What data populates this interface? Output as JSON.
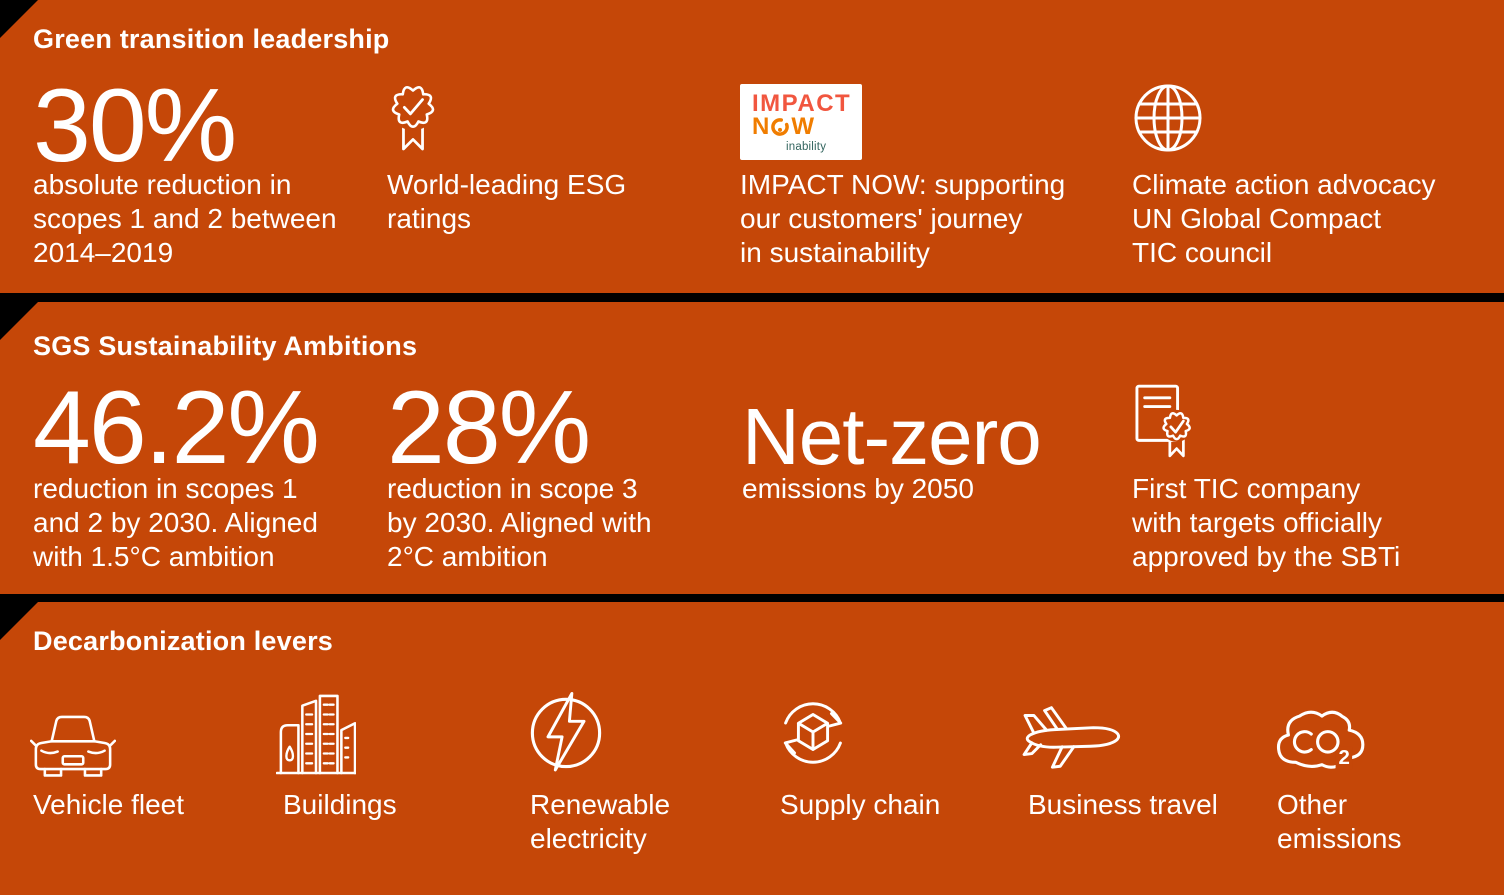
{
  "colors": {
    "background": "#000000",
    "panel": "#C54708",
    "text": "#FFFFFF",
    "logo": {
      "impact": "#F1563F",
      "now": "#F07D00",
      "sub": "#33655F",
      "box_bg": "#FFFFFF"
    }
  },
  "s1": {
    "title": "Green transition leadership",
    "stat": {
      "value": "30%",
      "lines": [
        "absolute reduction in",
        "scopes 1 and 2 between",
        "2014–2019"
      ]
    },
    "esg": {
      "icon": "award-badge-icon",
      "lines": [
        "World-leading ESG",
        "ratings"
      ]
    },
    "impact": {
      "icon": "impact-now-logo",
      "logo": {
        "word1": "IMPACT",
        "n": "N",
        "w": "W",
        "sub": "inability"
      },
      "lines": [
        "IMPACT NOW: supporting",
        "our customers' journey",
        "in sustainability"
      ]
    },
    "climate": {
      "icon": "globe-icon",
      "lines": [
        "Climate action advocacy",
        "UN Global Compact",
        "TIC council"
      ]
    }
  },
  "s2": {
    "title": "SGS Sustainability Ambitions",
    "stat1": {
      "value": "46.2%",
      "lines": [
        "reduction in scopes 1",
        "and 2 by 2030. Aligned",
        "with 1.5°C ambition"
      ]
    },
    "stat2": {
      "value": "28%",
      "lines": [
        "reduction in scope 3",
        "by 2030. Aligned with",
        "2°C ambition"
      ]
    },
    "netzero": {
      "value": "Net-zero",
      "lines": [
        "emissions by 2050"
      ]
    },
    "sbti": {
      "icon": "certificate-icon",
      "lines": [
        "First TIC company",
        "with targets officially",
        "approved by the SBTi"
      ]
    }
  },
  "s3": {
    "title": "Decarbonization levers",
    "levers": [
      {
        "icon": "car-icon",
        "lines": [
          "Vehicle fleet"
        ]
      },
      {
        "icon": "buildings-icon",
        "lines": [
          "Buildings"
        ]
      },
      {
        "icon": "lightning-circle-icon",
        "lines": [
          "Renewable",
          "electricity"
        ]
      },
      {
        "icon": "supply-chain-icon",
        "lines": [
          "Supply chain"
        ]
      },
      {
        "icon": "airplane-icon",
        "lines": [
          "Business travel"
        ]
      },
      {
        "icon": "co2-cloud-icon",
        "lines": [
          "Other",
          "emissions"
        ]
      }
    ]
  }
}
